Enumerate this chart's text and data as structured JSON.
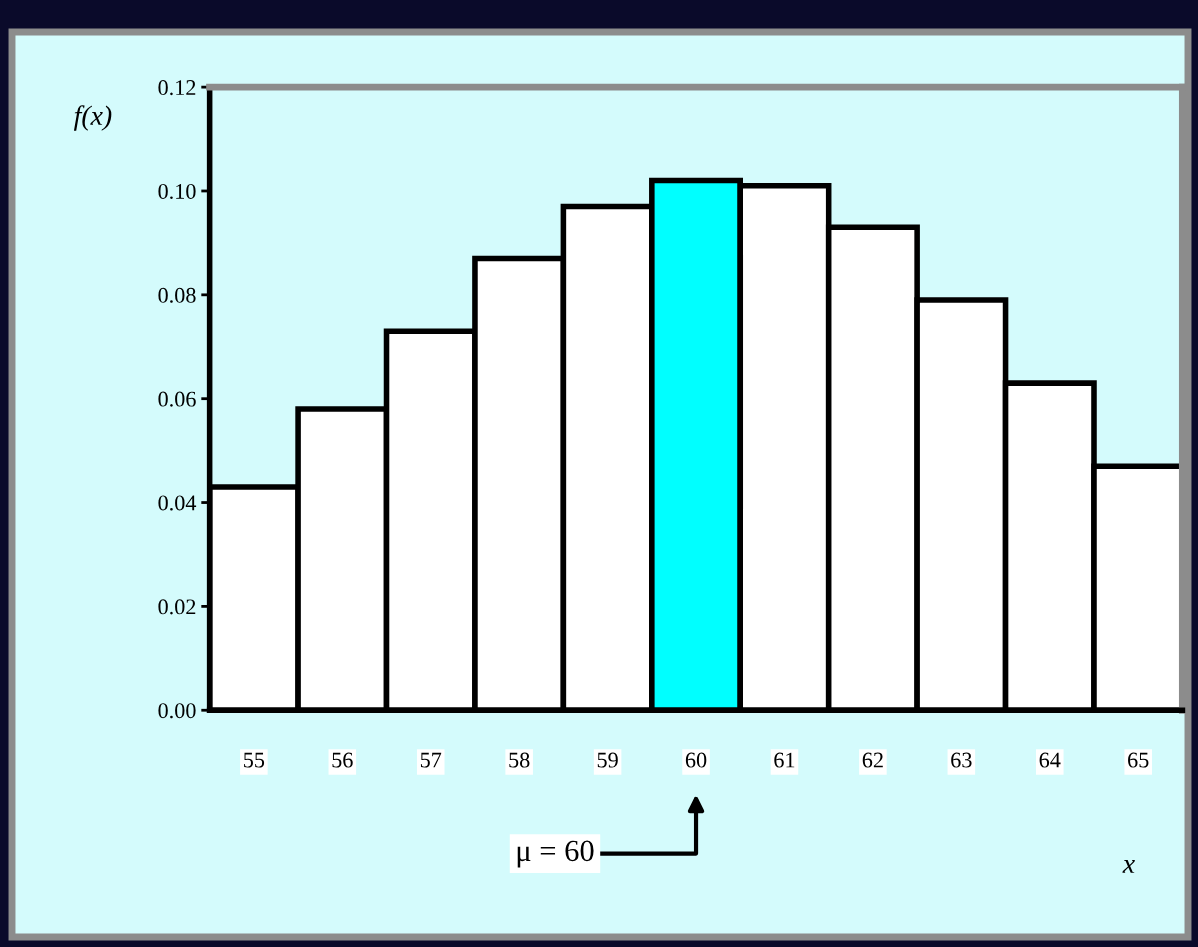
{
  "chart_data": {
    "type": "bar",
    "xlabel": "x",
    "ylabel": "f(x)",
    "categories": [
      "55",
      "56",
      "57",
      "58",
      "59",
      "60",
      "61",
      "62",
      "63",
      "64",
      "65"
    ],
    "values": [
      0.043,
      0.058,
      0.073,
      0.087,
      0.097,
      0.102,
      0.101,
      0.093,
      0.079,
      0.063,
      0.047
    ],
    "colors": [
      "#ffffff",
      "#ffffff",
      "#ffffff",
      "#ffffff",
      "#ffffff",
      "#00ffff",
      "#ffffff",
      "#ffffff",
      "#ffffff",
      "#ffffff",
      "#ffffff"
    ],
    "ylim": [
      0,
      0.12
    ],
    "yticks": [
      {
        "value": 0,
        "label": "0.00"
      },
      {
        "value": 0.02,
        "label": "0.02"
      },
      {
        "value": 0.04,
        "label": "0.04"
      },
      {
        "value": 0.06,
        "label": "0.06"
      },
      {
        "value": 0.08,
        "label": "0.08"
      },
      {
        "value": 0.1,
        "label": "0.10"
      },
      {
        "value": 0.12,
        "label": "0.12"
      }
    ],
    "annotations": [
      "μ = 60"
    ],
    "grid": false,
    "legend": false
  }
}
